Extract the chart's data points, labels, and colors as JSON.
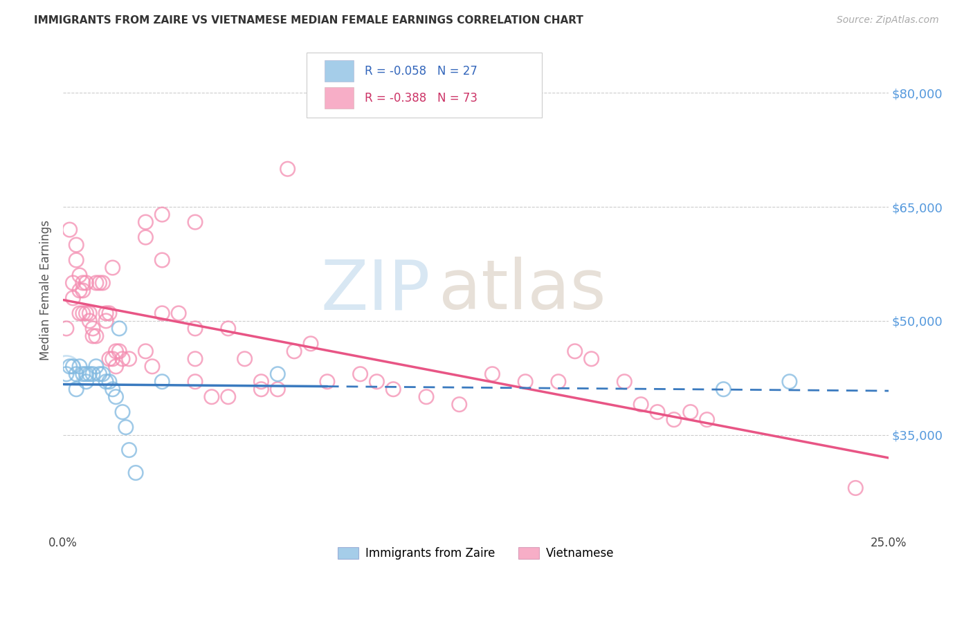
{
  "title": "IMMIGRANTS FROM ZAIRE VS VIETNAMESE MEDIAN FEMALE EARNINGS CORRELATION CHART",
  "source": "Source: ZipAtlas.com",
  "ylabel": "Median Female Earnings",
  "yticks": [
    35000,
    50000,
    65000,
    80000
  ],
  "ytick_labels": [
    "$35,000",
    "$50,000",
    "$65,000",
    "$80,000"
  ],
  "xlim": [
    0.0,
    0.25
  ],
  "ylim": [
    22000,
    86000
  ],
  "legend_blue_R": "R = -0.058",
  "legend_blue_N": "N = 27",
  "legend_pink_R": "R = -0.388",
  "legend_pink_N": "N = 73",
  "legend_label_blue": "Immigrants from Zaire",
  "legend_label_pink": "Vietnamese",
  "blue_color": "#7fb8e0",
  "pink_color": "#f48cb0",
  "blue_line_color": "#3a7abf",
  "pink_line_color": "#e85585",
  "blue_scatter": [
    [
      0.001,
      43000
    ],
    [
      0.002,
      44000
    ],
    [
      0.003,
      44000
    ],
    [
      0.004,
      43000
    ],
    [
      0.004,
      41000
    ],
    [
      0.005,
      44000
    ],
    [
      0.006,
      43000
    ],
    [
      0.007,
      43000
    ],
    [
      0.007,
      42000
    ],
    [
      0.008,
      43000
    ],
    [
      0.009,
      43000
    ],
    [
      0.01,
      44000
    ],
    [
      0.011,
      43000
    ],
    [
      0.012,
      43000
    ],
    [
      0.013,
      42000
    ],
    [
      0.014,
      42000
    ],
    [
      0.015,
      41000
    ],
    [
      0.016,
      40000
    ],
    [
      0.017,
      49000
    ],
    [
      0.018,
      38000
    ],
    [
      0.019,
      36000
    ],
    [
      0.02,
      33000
    ],
    [
      0.022,
      30000
    ],
    [
      0.03,
      42000
    ],
    [
      0.065,
      43000
    ],
    [
      0.2,
      41000
    ],
    [
      0.22,
      42000
    ]
  ],
  "pink_scatter": [
    [
      0.001,
      49000
    ],
    [
      0.002,
      62000
    ],
    [
      0.003,
      55000
    ],
    [
      0.003,
      53000
    ],
    [
      0.004,
      58000
    ],
    [
      0.004,
      60000
    ],
    [
      0.005,
      56000
    ],
    [
      0.005,
      54000
    ],
    [
      0.005,
      51000
    ],
    [
      0.006,
      54000
    ],
    [
      0.006,
      55000
    ],
    [
      0.006,
      51000
    ],
    [
      0.007,
      51000
    ],
    [
      0.007,
      55000
    ],
    [
      0.008,
      51000
    ],
    [
      0.008,
      50000
    ],
    [
      0.009,
      49000
    ],
    [
      0.009,
      48000
    ],
    [
      0.01,
      55000
    ],
    [
      0.01,
      48000
    ],
    [
      0.011,
      55000
    ],
    [
      0.012,
      55000
    ],
    [
      0.013,
      51000
    ],
    [
      0.013,
      50000
    ],
    [
      0.014,
      51000
    ],
    [
      0.014,
      45000
    ],
    [
      0.015,
      57000
    ],
    [
      0.015,
      45000
    ],
    [
      0.016,
      46000
    ],
    [
      0.016,
      44000
    ],
    [
      0.017,
      46000
    ],
    [
      0.018,
      45000
    ],
    [
      0.02,
      45000
    ],
    [
      0.025,
      46000
    ],
    [
      0.027,
      44000
    ],
    [
      0.03,
      51000
    ],
    [
      0.03,
      58000
    ],
    [
      0.035,
      51000
    ],
    [
      0.04,
      49000
    ],
    [
      0.04,
      45000
    ],
    [
      0.04,
      42000
    ],
    [
      0.045,
      40000
    ],
    [
      0.05,
      49000
    ],
    [
      0.05,
      40000
    ],
    [
      0.055,
      45000
    ],
    [
      0.06,
      42000
    ],
    [
      0.06,
      41000
    ],
    [
      0.065,
      41000
    ],
    [
      0.07,
      46000
    ],
    [
      0.075,
      47000
    ],
    [
      0.08,
      42000
    ],
    [
      0.09,
      43000
    ],
    [
      0.095,
      42000
    ],
    [
      0.1,
      41000
    ],
    [
      0.11,
      40000
    ],
    [
      0.12,
      39000
    ],
    [
      0.13,
      43000
    ],
    [
      0.14,
      42000
    ],
    [
      0.15,
      42000
    ],
    [
      0.155,
      46000
    ],
    [
      0.16,
      45000
    ],
    [
      0.17,
      42000
    ],
    [
      0.175,
      39000
    ],
    [
      0.18,
      38000
    ],
    [
      0.185,
      37000
    ],
    [
      0.19,
      38000
    ],
    [
      0.195,
      37000
    ],
    [
      0.068,
      70000
    ],
    [
      0.03,
      64000
    ],
    [
      0.04,
      63000
    ],
    [
      0.025,
      63000
    ],
    [
      0.025,
      61000
    ],
    [
      0.24,
      28000
    ]
  ],
  "background_color": "#ffffff",
  "grid_color": "#cccccc"
}
